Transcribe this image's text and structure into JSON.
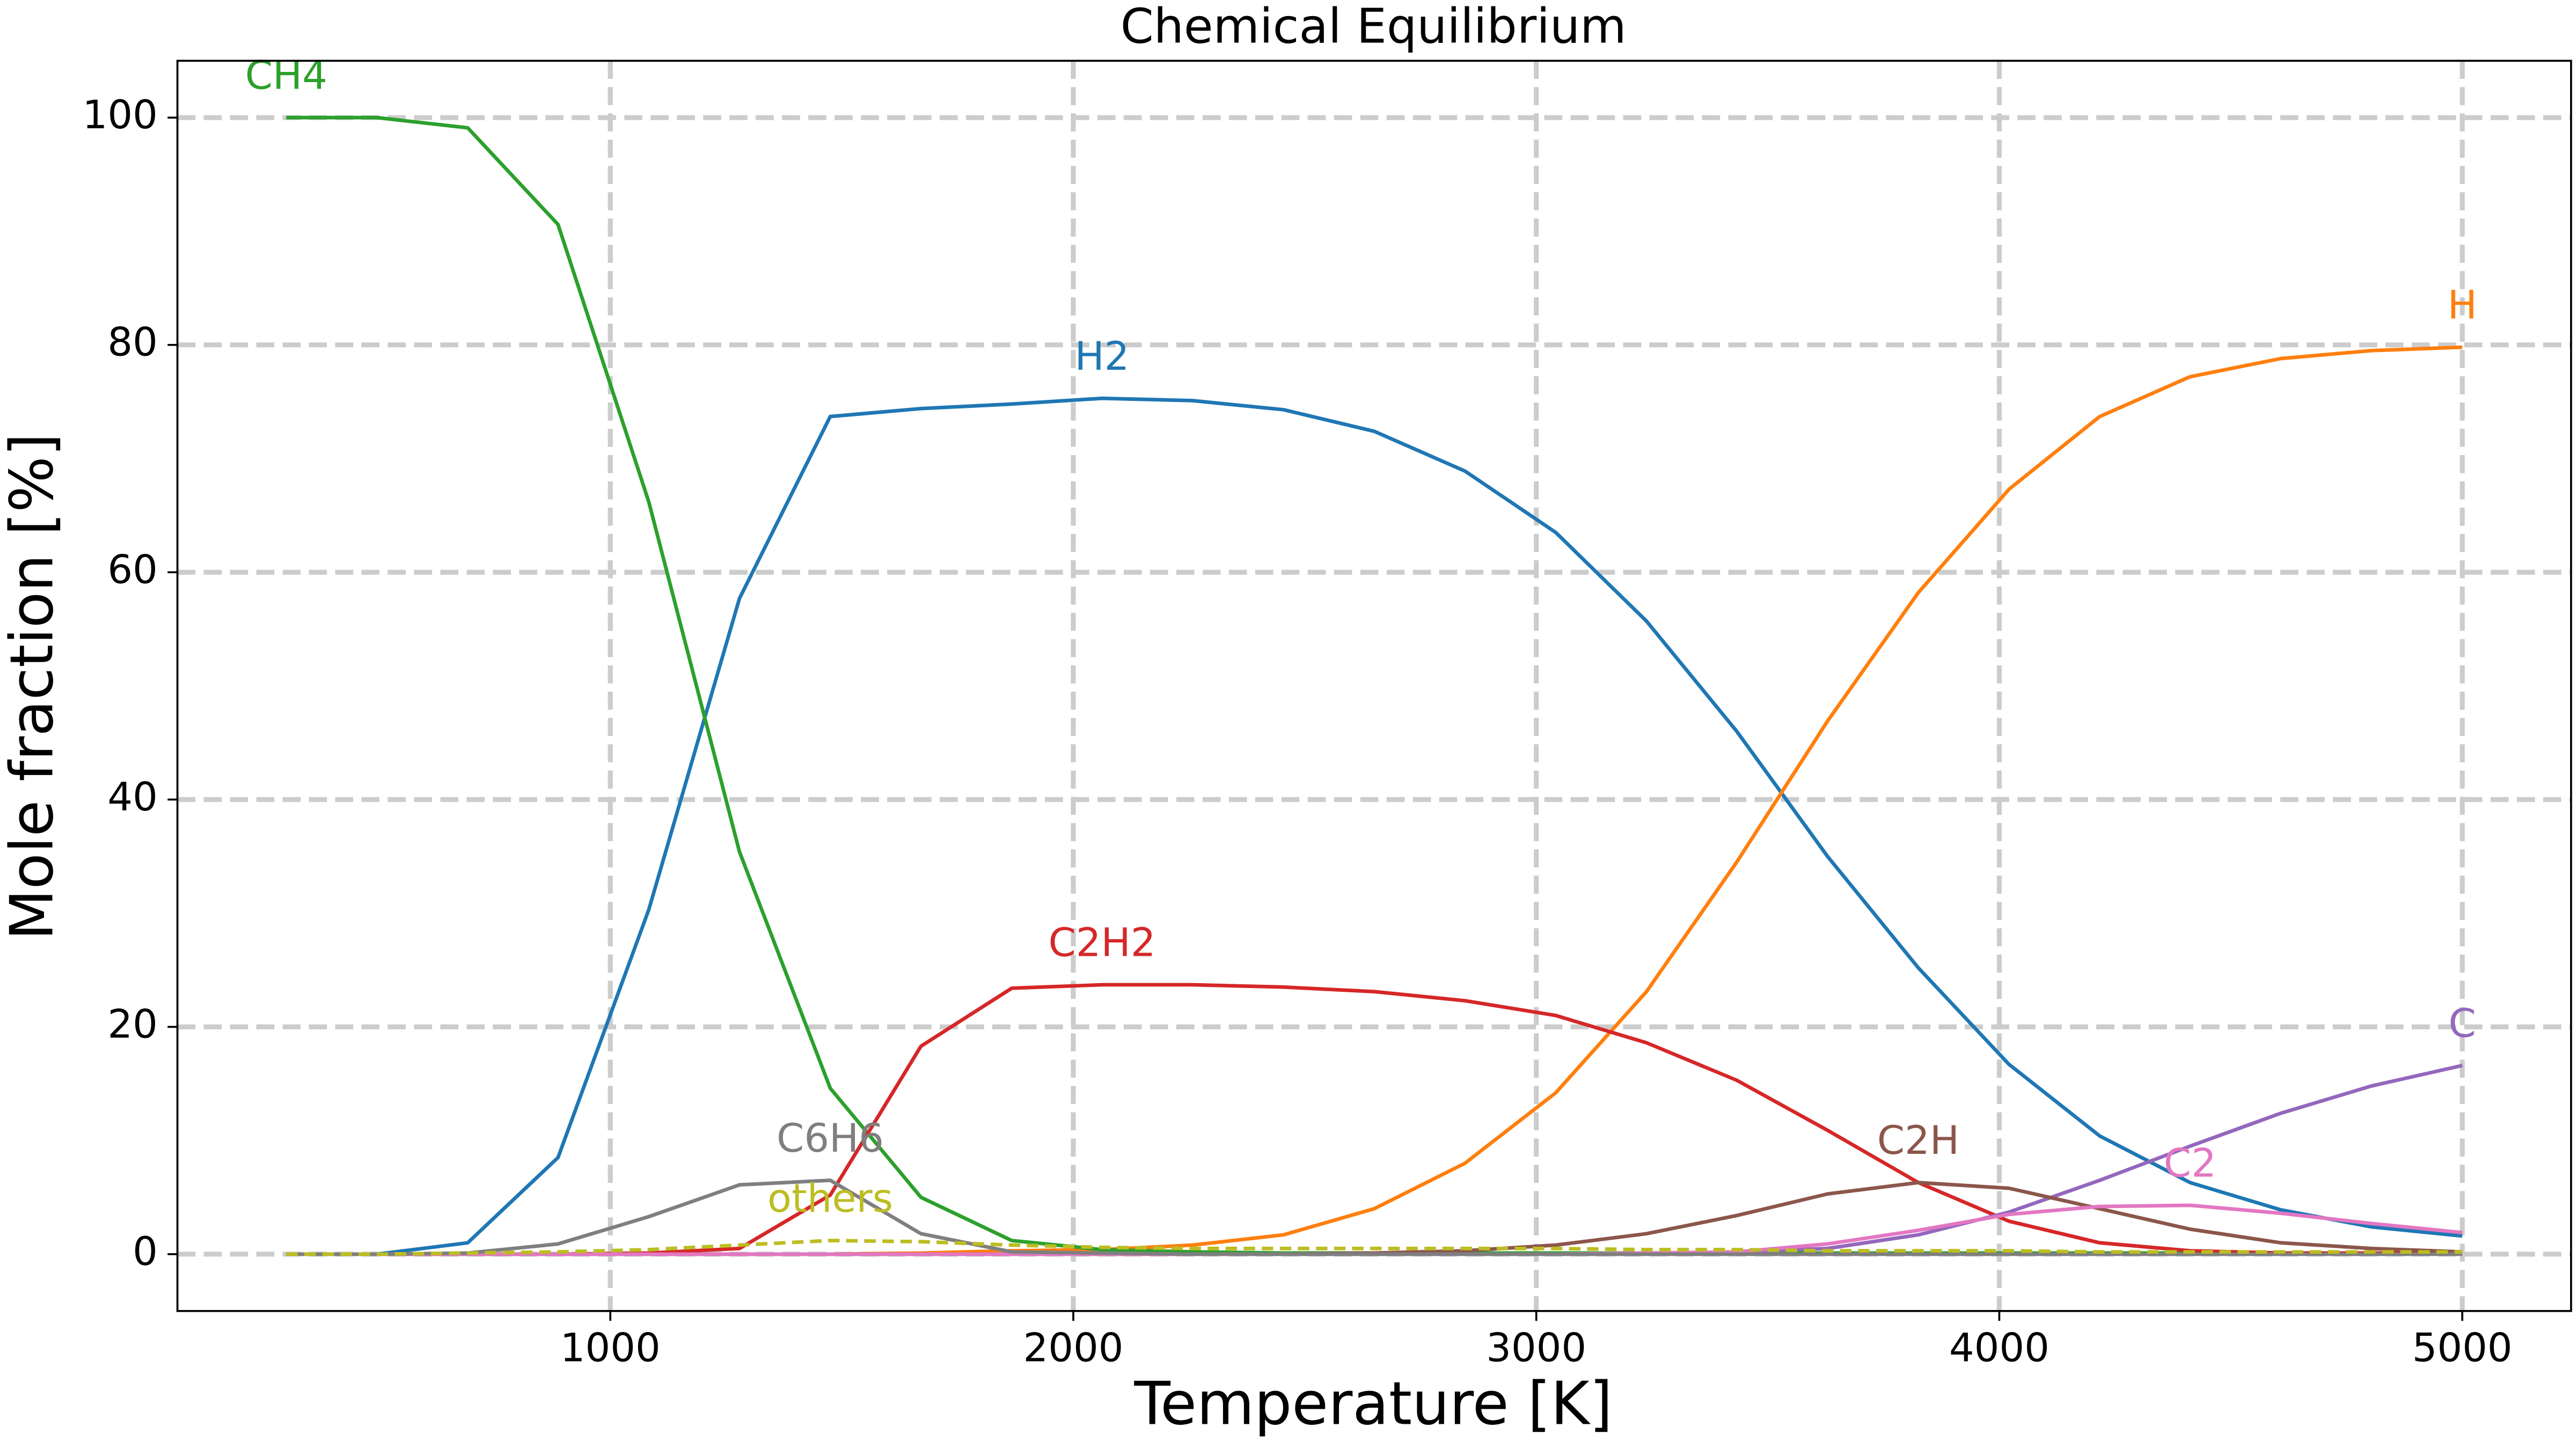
{
  "chart_data": {
    "type": "line",
    "title": "Chemical Equilibrium",
    "x_label": "Temperature [K]",
    "y_label": "Mole fraction [%]",
    "x": [
      300,
      496,
      692,
      887,
      1083,
      1279,
      1475,
      1671,
      1867,
      2062,
      2258,
      2454,
      2650,
      2846,
      3042,
      3238,
      3433,
      3629,
      3825,
      4021,
      4217,
      4412,
      4608,
      4804,
      5000
    ],
    "xlim": [
      65,
      5235
    ],
    "xticks": [
      1000,
      2000,
      3000,
      4000,
      5000
    ],
    "ylim": [
      -5,
      105
    ],
    "yticks": [
      0,
      20,
      40,
      60,
      80,
      100
    ],
    "grid": true,
    "series": [
      {
        "name": "H2",
        "color": "#1f77b4",
        "values": [
          0,
          0,
          1,
          8.5,
          30.3,
          57.7,
          73.7,
          74.4,
          74.8,
          75.3,
          75.1,
          74.3,
          72.4,
          68.9,
          63.5,
          55.7,
          46,
          35,
          25.2,
          16.7,
          10.4,
          6.3,
          3.9,
          2.4,
          1.6
        ]
      },
      {
        "name": "H",
        "color": "#ff7f0e",
        "values": [
          0,
          0,
          0,
          0,
          0,
          0,
          0,
          0.1,
          0.3,
          0.4,
          0.8,
          1.7,
          4,
          8,
          14.2,
          23.1,
          34.5,
          46.9,
          58.2,
          67.3,
          73.7,
          77.2,
          78.8,
          79.5,
          79.8
        ]
      },
      {
        "name": "CH4",
        "color": "#2ca02c",
        "values": [
          100,
          100,
          99.1,
          90.6,
          66.2,
          35.4,
          14.6,
          5,
          1.2,
          0.4,
          0.2,
          0.1,
          0.1,
          0.1,
          0.1,
          0.1,
          0.1,
          0.1,
          0.1,
          0.1,
          0.1,
          0.1,
          0.1,
          0.1,
          0.1
        ]
      },
      {
        "name": "C2H2",
        "color": "#d62728",
        "values": [
          0,
          0,
          0,
          0,
          0.1,
          0.5,
          5.2,
          18.3,
          23.4,
          23.7,
          23.7,
          23.5,
          23.1,
          22.3,
          21,
          18.6,
          15.3,
          10.9,
          6.3,
          2.9,
          1,
          0.3,
          0.1,
          0.1,
          0.1
        ]
      },
      {
        "name": "C",
        "color": "#9467bd",
        "values": [
          0,
          0,
          0,
          0,
          0,
          0,
          0,
          0,
          0,
          0,
          0,
          0,
          0,
          0,
          0,
          0,
          0.2,
          0.5,
          1.7,
          3.7,
          6.5,
          9.5,
          12.4,
          14.8,
          16.6
        ]
      },
      {
        "name": "C2H",
        "color": "#8c564b",
        "values": [
          0,
          0,
          0,
          0,
          0,
          0,
          0,
          0,
          0,
          0,
          0,
          0,
          0.1,
          0.3,
          0.8,
          1.8,
          3.4,
          5.3,
          6.3,
          5.8,
          4,
          2.2,
          1,
          0.5,
          0.2
        ]
      },
      {
        "name": "C2",
        "color": "#e377c2",
        "values": [
          0,
          0,
          0,
          0,
          0,
          0,
          0,
          0,
          0,
          0,
          0,
          0,
          0,
          0,
          0,
          0.1,
          0.2,
          0.9,
          2.1,
          3.5,
          4.2,
          4.3,
          3.6,
          2.7,
          1.9
        ]
      },
      {
        "name": "C6H6",
        "color": "#7f7f7f",
        "values": [
          0,
          0,
          0.1,
          0.9,
          3.3,
          6.1,
          6.5,
          1.8,
          0.2,
          0.1,
          0,
          0,
          0,
          0,
          0,
          0,
          0,
          0,
          0,
          0,
          0,
          0,
          0,
          0,
          0
        ]
      },
      {
        "name": "others",
        "color": "#bcbd22",
        "dashed": true,
        "values": [
          0,
          0,
          0.1,
          0.2,
          0.4,
          0.8,
          1.2,
          1.1,
          0.8,
          0.6,
          0.5,
          0.5,
          0.5,
          0.5,
          0.5,
          0.4,
          0.4,
          0.3,
          0.3,
          0.3,
          0.2,
          0.2,
          0.2,
          0.2,
          0.2
        ]
      }
    ]
  }
}
